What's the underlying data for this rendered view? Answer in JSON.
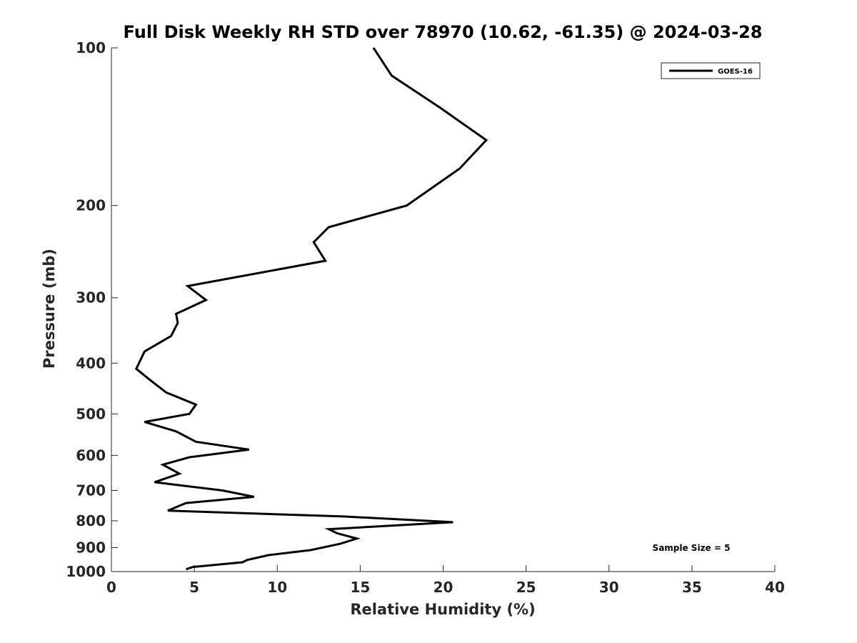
{
  "chart_data": {
    "type": "line",
    "title": "Full Disk Weekly RH STD over 78970 (10.62, -61.35) @ 2024-03-28",
    "xlabel": "Relative Humidity (%)",
    "ylabel": "Pressure (mb)",
    "xlim": [
      0,
      40
    ],
    "ylim": [
      1000,
      100
    ],
    "y_scale": "log",
    "y_reversed": true,
    "grid": false,
    "legend_position": "top-right",
    "x_ticks": [
      0,
      5,
      10,
      15,
      20,
      25,
      30,
      35,
      40
    ],
    "x_tick_labels": [
      "0",
      "5",
      "10",
      "15",
      "20",
      "25",
      "30",
      "35",
      "40"
    ],
    "y_ticks": [
      100,
      200,
      300,
      400,
      500,
      600,
      700,
      800,
      900,
      1000
    ],
    "y_tick_labels": [
      "100",
      "200",
      "300",
      "400",
      "500",
      "600",
      "700",
      "800",
      "900",
      "1000"
    ],
    "annotation": "Sample Size = 5",
    "series": [
      {
        "name": "GOES-16",
        "color": "#000000",
        "x": [
          15.8,
          16.9,
          19.8,
          22.6,
          21.0,
          17.8,
          13.1,
          12.2,
          12.9,
          4.6,
          5.7,
          3.9,
          4.0,
          3.6,
          2.0,
          1.5,
          2.3,
          3.3,
          5.1,
          4.7,
          2.0,
          3.9,
          5.1,
          8.3,
          4.7,
          3.1,
          4.1,
          2.6,
          6.7,
          8.6,
          4.5,
          3.4,
          14.0,
          20.6,
          13.1,
          13.6,
          14.8,
          13.8,
          12.0,
          9.5,
          8.2,
          7.9,
          4.9,
          4.5
        ],
        "y": [
          100,
          113,
          130,
          150,
          170,
          200,
          220,
          235,
          255,
          285,
          303,
          322,
          335,
          355,
          380,
          410,
          430,
          455,
          480,
          500,
          518,
          540,
          565,
          585,
          605,
          625,
          650,
          675,
          700,
          720,
          740,
          765,
          785,
          805,
          830,
          845,
          865,
          885,
          910,
          930,
          950,
          960,
          980,
          990
        ]
      }
    ]
  }
}
